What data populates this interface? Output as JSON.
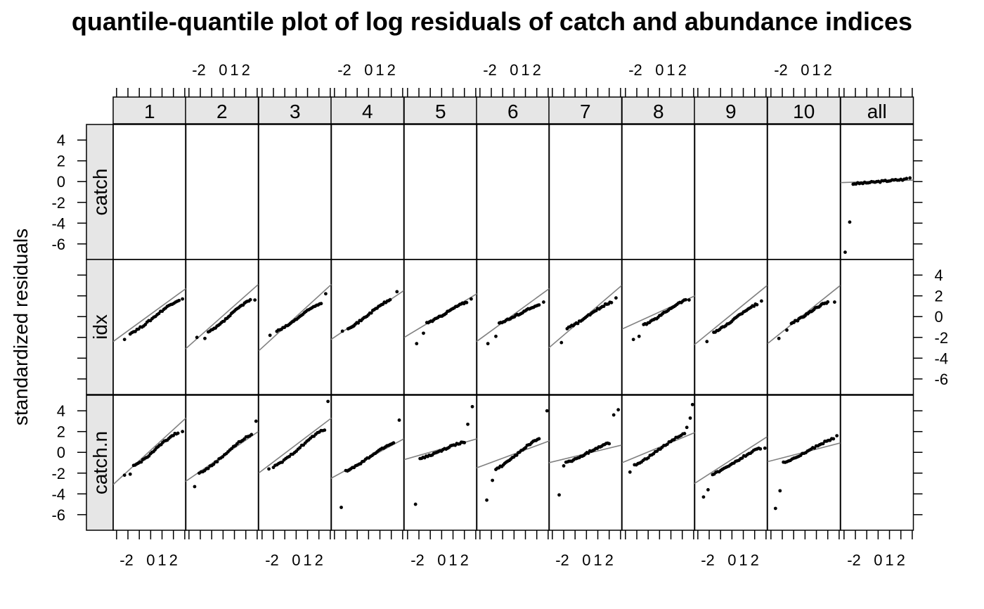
{
  "chart_data": {
    "type": "scatter",
    "title": "quantile-quantile plot of log residuals of catch and abundance indices",
    "ylabel": "standardized residuals",
    "xlabel": "",
    "columns": [
      "1",
      "2",
      "3",
      "4",
      "5",
      "6",
      "7",
      "8",
      "9",
      "10",
      "all"
    ],
    "rows": [
      "catch",
      "idx",
      "catch.n"
    ],
    "xlim": [
      -3.3,
      3.1
    ],
    "ylim": [
      -7.5,
      5.5
    ],
    "x_tick_values": [
      -2,
      0,
      1,
      2
    ],
    "x_tick_labels": [
      "-2",
      "0",
      "1",
      "2"
    ],
    "x_minor_ticks": [
      -3,
      -2,
      -1,
      0,
      1,
      2,
      3
    ],
    "y_ticks": [
      4,
      2,
      0,
      -2,
      -4,
      -6
    ],
    "y_tick_labels": [
      "4",
      "2",
      "0",
      "-2",
      "-4",
      "-6"
    ],
    "grid": false,
    "panels": [
      {
        "row": "catch",
        "column": "all",
        "points": [
          [
            -2.9,
            -6.8
          ],
          [
            -2.5,
            -3.9
          ],
          [
            -2.2,
            -0.25
          ]
        ],
        "bulk": {
          "x1": -2.1,
          "x2": 2.3,
          "y1": -0.2,
          "y2": 0.2
        },
        "extra": [
          [
            2.5,
            0.3
          ],
          [
            2.8,
            0.35
          ]
        ],
        "line": [
          [
            -3.3,
            -0.1
          ],
          [
            3.1,
            0.15
          ]
        ]
      },
      {
        "row": "idx",
        "column": "1",
        "points": [
          [
            -2.3,
            -2.2
          ],
          [
            2.8,
            1.7
          ]
        ],
        "bulk": {
          "x1": -1.8,
          "x2": 2.5,
          "y1": -1.6,
          "y2": 1.6
        },
        "line": [
          [
            -3.3,
            -2.4
          ],
          [
            3.1,
            2.7
          ]
        ]
      },
      {
        "row": "idx",
        "column": "2",
        "points": [
          [
            -2.3,
            -2.0
          ],
          [
            -1.6,
            -2.1
          ],
          [
            2.8,
            1.6
          ]
        ],
        "bulk": {
          "x1": -1.3,
          "x2": 2.4,
          "y1": -1.5,
          "y2": 1.6
        },
        "line": [
          [
            -3.3,
            -3.1
          ],
          [
            3.1,
            3.1
          ]
        ]
      },
      {
        "row": "idx",
        "column": "3",
        "points": [
          [
            -2.3,
            -1.8
          ],
          [
            2.6,
            2.2
          ]
        ],
        "bulk": {
          "x1": -1.7,
          "x2": 2.2,
          "y1": -1.4,
          "y2": 1.3
        },
        "line": [
          [
            -3.3,
            -3.3
          ],
          [
            3.1,
            3.1
          ]
        ]
      },
      {
        "row": "idx",
        "column": "4",
        "points": [
          [
            -2.3,
            -1.4
          ],
          [
            2.5,
            2.4
          ]
        ],
        "bulk": {
          "x1": -1.8,
          "x2": 1.9,
          "y1": -1.1,
          "y2": 1.6
        },
        "line": [
          [
            -3.3,
            -2.2
          ],
          [
            3.1,
            2.5
          ]
        ]
      },
      {
        "row": "idx",
        "column": "5",
        "points": [
          [
            -2.2,
            -2.6
          ],
          [
            -1.6,
            -1.6
          ],
          [
            2.6,
            1.7
          ]
        ],
        "bulk": {
          "x1": -1.3,
          "x2": 2.2,
          "y1": -0.6,
          "y2": 1.4
        },
        "line": [
          [
            -3.3,
            -2.0
          ],
          [
            3.1,
            2.2
          ]
        ]
      },
      {
        "row": "idx",
        "column": "6",
        "points": [
          [
            -2.3,
            -2.6
          ],
          [
            -1.6,
            -1.9
          ],
          [
            2.6,
            1.4
          ]
        ],
        "bulk": {
          "x1": -1.3,
          "x2": 2.2,
          "y1": -0.6,
          "y2": 1.1
        },
        "line": [
          [
            -3.3,
            -2.4
          ],
          [
            3.1,
            2.7
          ]
        ]
      },
      {
        "row": "idx",
        "column": "7",
        "points": [
          [
            -2.2,
            -2.5
          ],
          [
            2.6,
            1.8
          ]
        ],
        "bulk": {
          "x1": -1.7,
          "x2": 2.2,
          "y1": -1.1,
          "y2": 1.4
        },
        "line": [
          [
            -3.3,
            -3.0
          ],
          [
            3.1,
            3.0
          ]
        ]
      },
      {
        "row": "idx",
        "column": "8",
        "points": [
          [
            -2.3,
            -2.2
          ],
          [
            -1.8,
            -1.9
          ],
          [
            2.6,
            1.6
          ]
        ],
        "bulk": {
          "x1": -1.4,
          "x2": 2.3,
          "y1": -0.8,
          "y2": 1.6
        },
        "line": [
          [
            -3.3,
            -1.2
          ],
          [
            3.1,
            2.0
          ]
        ]
      },
      {
        "row": "idx",
        "column": "9",
        "points": [
          [
            -2.2,
            -2.4
          ],
          [
            2.6,
            1.5
          ]
        ],
        "bulk": {
          "x1": -1.6,
          "x2": 2.2,
          "y1": -1.5,
          "y2": 1.2
        },
        "line": [
          [
            -3.3,
            -2.7
          ],
          [
            3.1,
            3.0
          ]
        ]
      },
      {
        "row": "idx",
        "column": "10",
        "points": [
          [
            -2.3,
            -2.1
          ],
          [
            -1.6,
            -1.3
          ],
          [
            2.6,
            1.4
          ]
        ],
        "bulk": {
          "x1": -1.2,
          "x2": 2.0,
          "y1": -0.6,
          "y2": 1.4
        },
        "line": [
          [
            -3.3,
            -2.6
          ],
          [
            3.1,
            3.0
          ]
        ]
      },
      {
        "row": "catch.n",
        "column": "1",
        "points": [
          [
            -2.3,
            -2.2
          ],
          [
            -1.8,
            -2.1
          ],
          [
            2.8,
            2.0
          ]
        ],
        "bulk": {
          "x1": -1.5,
          "x2": 2.4,
          "y1": -1.3,
          "y2": 1.9
        },
        "line": [
          [
            -3.3,
            -3.1
          ],
          [
            3.1,
            3.3
          ]
        ]
      },
      {
        "row": "catch.n",
        "column": "2",
        "points": [
          [
            -2.5,
            -3.3
          ],
          [
            2.9,
            3.0
          ]
        ],
        "bulk": {
          "x1": -2.1,
          "x2": 2.5,
          "y1": -2.0,
          "y2": 1.7
        },
        "line": [
          [
            -3.3,
            -2.8
          ],
          [
            3.1,
            2.0
          ]
        ]
      },
      {
        "row": "catch.n",
        "column": "3",
        "points": [
          [
            -2.4,
            -1.6
          ],
          [
            2.8,
            4.9
          ]
        ],
        "bulk": {
          "x1": -2.0,
          "x2": 2.5,
          "y1": -1.4,
          "y2": 2.2
        },
        "line": [
          [
            -3.3,
            -2.0
          ],
          [
            3.1,
            3.3
          ]
        ]
      },
      {
        "row": "catch.n",
        "column": "4",
        "points": [
          [
            -2.4,
            -5.3
          ],
          [
            2.7,
            3.1
          ]
        ],
        "bulk": {
          "x1": -2.0,
          "x2": 2.2,
          "y1": -1.8,
          "y2": 0.9
        },
        "line": [
          [
            -3.3,
            -2.5
          ],
          [
            3.1,
            1.3
          ]
        ]
      },
      {
        "row": "catch.n",
        "column": "5",
        "points": [
          [
            -2.3,
            -5.0
          ],
          [
            2.3,
            2.7
          ],
          [
            2.7,
            4.4
          ]
        ],
        "bulk": {
          "x1": -1.9,
          "x2": 2.0,
          "y1": -0.6,
          "y2": 1.0
        },
        "line": [
          [
            -3.3,
            -0.7
          ],
          [
            3.1,
            1.3
          ]
        ]
      },
      {
        "row": "catch.n",
        "column": "6",
        "points": [
          [
            -2.4,
            -4.6
          ],
          [
            -1.9,
            -2.7
          ],
          [
            2.9,
            4.0
          ]
        ],
        "bulk": {
          "x1": -1.6,
          "x2": 2.2,
          "y1": -1.6,
          "y2": 1.3
        },
        "line": [
          [
            -3.3,
            -1.5
          ],
          [
            3.1,
            1.1
          ]
        ]
      },
      {
        "row": "catch.n",
        "column": "7",
        "points": [
          [
            -2.4,
            -4.1
          ],
          [
            -2.0,
            -1.3
          ],
          [
            2.4,
            3.6
          ],
          [
            2.8,
            4.1
          ]
        ],
        "bulk": {
          "x1": -1.8,
          "x2": 2.0,
          "y1": -1.0,
          "y2": 0.9
        },
        "line": [
          [
            -3.3,
            -1.0
          ],
          [
            3.1,
            0.7
          ]
        ]
      },
      {
        "row": "catch.n",
        "column": "8",
        "points": [
          [
            -2.6,
            -1.9
          ],
          [
            2.4,
            2.4
          ],
          [
            2.7,
            3.3
          ],
          [
            2.9,
            4.6
          ]
        ],
        "bulk": {
          "x1": -2.2,
          "x2": 2.2,
          "y1": -1.2,
          "y2": 1.8
        },
        "line": [
          [
            -3.3,
            -1.0
          ],
          [
            3.1,
            1.9
          ]
        ]
      },
      {
        "row": "catch.n",
        "column": "9",
        "points": [
          [
            -2.5,
            -4.3
          ],
          [
            -2.1,
            -3.6
          ],
          [
            2.9,
            0.4
          ]
        ],
        "bulk": {
          "x1": -1.7,
          "x2": 2.5,
          "y1": -2.1,
          "y2": 0.4
        },
        "line": [
          [
            -3.3,
            -3.0
          ],
          [
            3.1,
            1.5
          ]
        ]
      },
      {
        "row": "catch.n",
        "column": "10",
        "points": [
          [
            -2.6,
            -5.4
          ],
          [
            -2.2,
            -3.7
          ],
          [
            2.8,
            1.6
          ]
        ],
        "bulk": {
          "x1": -1.9,
          "x2": 2.5,
          "y1": -1.0,
          "y2": 1.3
        },
        "line": [
          [
            -3.3,
            -0.9
          ],
          [
            3.1,
            0.9
          ]
        ]
      }
    ]
  }
}
